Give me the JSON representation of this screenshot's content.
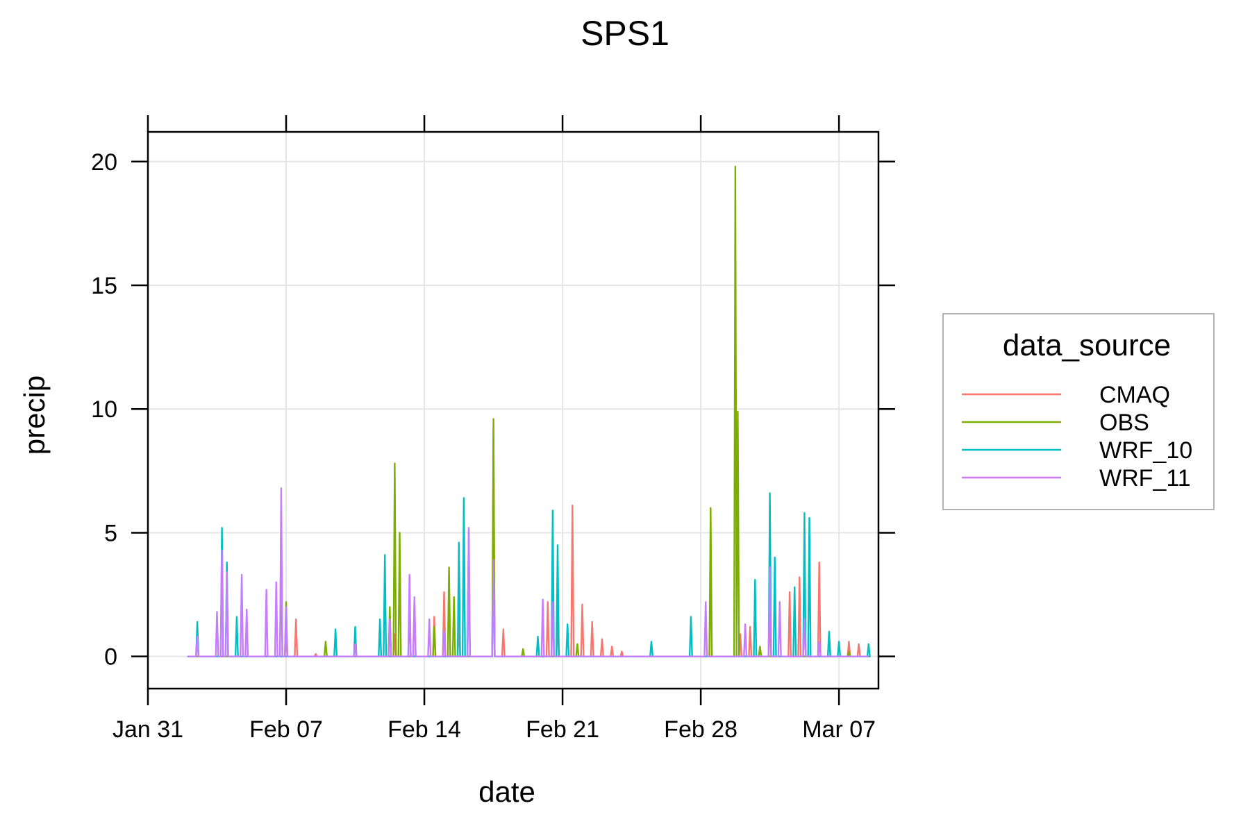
{
  "chart_data": {
    "type": "line",
    "title": "SPS1",
    "xlabel": "date",
    "ylabel": "precip",
    "x_ticks": [
      "Jan 31",
      "Feb 07",
      "Feb 14",
      "Feb 21",
      "Feb 28",
      "Mar 07"
    ],
    "y_ticks": [
      "0",
      "5",
      "10",
      "15",
      "20"
    ],
    "xlim": [
      "2021-01-31",
      "2021-03-09"
    ],
    "ylim": [
      -1.3,
      21.2
    ],
    "grid": true,
    "legend": {
      "title": "data_source",
      "position": "right"
    },
    "series": [
      {
        "name": "CMAQ",
        "color": "#F8766D",
        "points": [
          [
            "2021-02-07",
            0.8
          ],
          [
            "2021-02-07 12:00",
            1.5
          ],
          [
            "2021-02-08 12:00",
            0.1
          ],
          [
            "2021-02-12 12:00",
            0.9
          ],
          [
            "2021-02-13 12:00",
            2.3
          ],
          [
            "2021-02-14 12:00",
            1.6
          ],
          [
            "2021-02-15",
            2.6
          ],
          [
            "2021-02-15 18:00",
            1.4
          ],
          [
            "2021-02-17 12:00",
            9.2
          ],
          [
            "2021-02-18",
            1.1
          ],
          [
            "2021-02-20 06:00",
            2.2
          ],
          [
            "2021-02-20 18:00",
            1.7
          ],
          [
            "2021-02-21 12:00",
            6.1
          ],
          [
            "2021-02-22",
            2.1
          ],
          [
            "2021-02-22 12:00",
            1.4
          ],
          [
            "2021-02-23",
            0.7
          ],
          [
            "2021-02-23 12:00",
            0.4
          ],
          [
            "2021-02-24",
            0.2
          ],
          [
            "2021-02-28 12:00",
            3.6
          ],
          [
            "2021-03-02",
            0.9
          ],
          [
            "2021-03-02 12:00",
            1.2
          ],
          [
            "2021-03-03 12:00",
            1.8
          ],
          [
            "2021-03-04 12:00",
            2.6
          ],
          [
            "2021-03-05",
            3.2
          ],
          [
            "2021-03-06",
            3.8
          ],
          [
            "2021-03-06 12:00",
            0.9
          ],
          [
            "2021-03-07 12:00",
            0.6
          ],
          [
            "2021-03-08",
            0.5
          ]
        ]
      },
      {
        "name": "OBS",
        "color": "#7CAE00",
        "points": [
          [
            "2021-02-06 18:00",
            4.2
          ],
          [
            "2021-02-07",
            2.2
          ],
          [
            "2021-02-09",
            0.6
          ],
          [
            "2021-02-12 06:00",
            2.0
          ],
          [
            "2021-02-12 12:00",
            7.8
          ],
          [
            "2021-02-12 18:00",
            5.0
          ],
          [
            "2021-02-14 12:00",
            1.2
          ],
          [
            "2021-02-15 06:00",
            3.6
          ],
          [
            "2021-02-15 12:00",
            2.4
          ],
          [
            "2021-02-17 12:00",
            9.6
          ],
          [
            "2021-02-19",
            0.3
          ],
          [
            "2021-02-21 18:00",
            0.5
          ],
          [
            "2021-02-28 12:00",
            6.0
          ],
          [
            "2021-03-01 18:00",
            19.8
          ],
          [
            "2021-03-01 21:00",
            9.9
          ],
          [
            "2021-03-03",
            0.4
          ],
          [
            "2021-03-07 12:00",
            0.2
          ]
        ]
      },
      {
        "name": "WRF_10",
        "color": "#00BFC4",
        "points": [
          [
            "2021-02-02 12:00",
            1.4
          ],
          [
            "2021-02-03 18:00",
            5.2
          ],
          [
            "2021-02-04",
            3.8
          ],
          [
            "2021-02-04 12:00",
            1.6
          ],
          [
            "2021-02-09 12:00",
            1.1
          ],
          [
            "2021-02-10 12:00",
            1.2
          ],
          [
            "2021-02-11 18:00",
            1.5
          ],
          [
            "2021-02-12",
            4.1
          ],
          [
            "2021-02-13 06:00",
            2.0
          ],
          [
            "2021-02-15 18:00",
            4.6
          ],
          [
            "2021-02-16",
            6.4
          ],
          [
            "2021-02-16 06:00",
            5.1
          ],
          [
            "2021-02-17 12:00",
            3.9
          ],
          [
            "2021-02-19 18:00",
            0.8
          ],
          [
            "2021-02-20 12:00",
            5.9
          ],
          [
            "2021-02-20 18:00",
            4.5
          ],
          [
            "2021-02-21 06:00",
            1.3
          ],
          [
            "2021-02-25 12:00",
            0.6
          ],
          [
            "2021-02-27 12:00",
            1.6
          ],
          [
            "2021-03-02 18:00",
            3.1
          ],
          [
            "2021-03-03 12:00",
            6.6
          ],
          [
            "2021-03-03 18:00",
            4.0
          ],
          [
            "2021-03-04 18:00",
            2.8
          ],
          [
            "2021-03-05 06:00",
            5.8
          ],
          [
            "2021-03-05 12:00",
            5.6
          ],
          [
            "2021-03-06 12:00",
            1.0
          ],
          [
            "2021-03-07",
            0.6
          ],
          [
            "2021-03-08 12:00",
            0.5
          ]
        ]
      },
      {
        "name": "WRF_11",
        "color": "#C77CFF",
        "points": [
          [
            "2021-02-02 12:00",
            0.8
          ],
          [
            "2021-02-03 12:00",
            1.8
          ],
          [
            "2021-02-03 18:00",
            4.3
          ],
          [
            "2021-02-04",
            3.4
          ],
          [
            "2021-02-04 18:00",
            3.3
          ],
          [
            "2021-02-05",
            1.9
          ],
          [
            "2021-02-06",
            2.7
          ],
          [
            "2021-02-06 12:00",
            3.0
          ],
          [
            "2021-02-06 18:00",
            6.8
          ],
          [
            "2021-02-07",
            2.0
          ],
          [
            "2021-02-10 12:00",
            0.5
          ],
          [
            "2021-02-12 06:00",
            1.5
          ],
          [
            "2021-02-13 06:00",
            3.3
          ],
          [
            "2021-02-13 12:00",
            2.4
          ],
          [
            "2021-02-14 06:00",
            1.5
          ],
          [
            "2021-02-15",
            1.0
          ],
          [
            "2021-02-16 06:00",
            5.2
          ],
          [
            "2021-02-17 12:00",
            3.9
          ],
          [
            "2021-02-20",
            2.3
          ],
          [
            "2021-02-20 12:00",
            2.2
          ],
          [
            "2021-02-28 06:00",
            2.2
          ],
          [
            "2021-03-02 06:00",
            1.3
          ],
          [
            "2021-03-03 12:00",
            3.6
          ],
          [
            "2021-03-04",
            2.2
          ],
          [
            "2021-03-05 06:00",
            1.5
          ],
          [
            "2021-03-06",
            0.6
          ]
        ]
      }
    ]
  }
}
